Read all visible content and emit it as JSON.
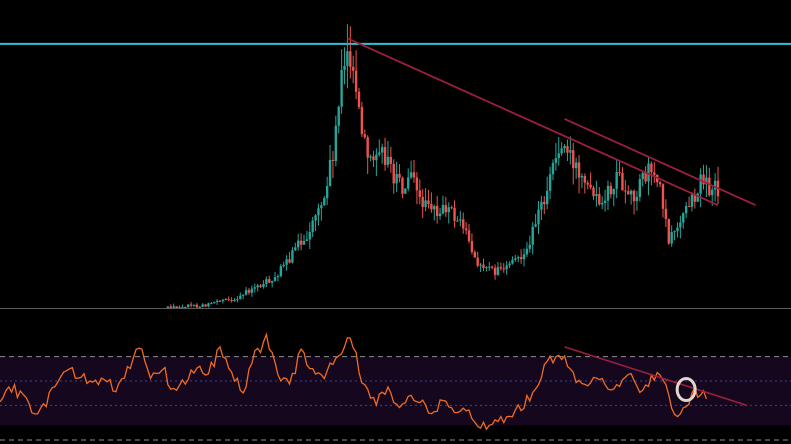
{
  "colors": {
    "background": "#000000",
    "bullish_candle": "#26a69a",
    "bearish_candle": "#ef5350",
    "horizontal_level": "#29c5d6",
    "trendline": "#9c1f3f",
    "oscillator_line": "#f26b21",
    "oscillator_band_fill": "#14071e",
    "band_bound_lines": "#8f8f8f",
    "midline": "#3d3fa8",
    "highlight_circle": "#e0d6cc",
    "pane_separator": "#5c5c5c"
  },
  "chart_data": [
    {
      "type": "candlestick",
      "pane": "price",
      "title": "",
      "xlabel": "",
      "ylabel": "",
      "x_index_range": [
        0,
        248
      ],
      "ylim": [
        0,
        100
      ],
      "close_path": [
        [
          0,
          0
        ],
        [
          60,
          0.3
        ],
        [
          70,
          1
        ],
        [
          80,
          3
        ],
        [
          90,
          8
        ],
        [
          96,
          12
        ],
        [
          100,
          18
        ],
        [
          104,
          24
        ],
        [
          108,
          30
        ],
        [
          112,
          40
        ],
        [
          115,
          55
        ],
        [
          118,
          80
        ],
        [
          120,
          95
        ],
        [
          122,
          88
        ],
        [
          124,
          70
        ],
        [
          127,
          58
        ],
        [
          130,
          52
        ],
        [
          133,
          55
        ],
        [
          136,
          48
        ],
        [
          139,
          42
        ],
        [
          142,
          46
        ],
        [
          145,
          40
        ],
        [
          148,
          35
        ],
        [
          151,
          34
        ],
        [
          154,
          36
        ],
        [
          157,
          33
        ],
        [
          160,
          30
        ],
        [
          163,
          20
        ],
        [
          166,
          15
        ],
        [
          170,
          13
        ],
        [
          174,
          14
        ],
        [
          178,
          17
        ],
        [
          182,
          22
        ],
        [
          185,
          30
        ],
        [
          188,
          40
        ],
        [
          191,
          52
        ],
        [
          194,
          58
        ],
        [
          196,
          55
        ],
        [
          198,
          52
        ],
        [
          201,
          50
        ],
        [
          204,
          45
        ],
        [
          207,
          40
        ],
        [
          210,
          42
        ],
        [
          213,
          48
        ],
        [
          216,
          44
        ],
        [
          219,
          40
        ],
        [
          222,
          46
        ],
        [
          225,
          50
        ],
        [
          228,
          42
        ],
        [
          231,
          24
        ],
        [
          234,
          30
        ],
        [
          238,
          38
        ],
        [
          242,
          45
        ],
        [
          246,
          43
        ]
      ],
      "annotations": [
        {
          "kind": "horizontal_line",
          "y_value": 95
        },
        {
          "kind": "trend_line",
          "from": [
            120,
            97
          ],
          "to": [
            248,
            37
          ]
        },
        {
          "kind": "trend_line",
          "from": [
            195,
            68
          ],
          "to": [
            261,
            37
          ]
        }
      ]
    },
    {
      "type": "line",
      "pane": "oscillator",
      "title": "",
      "xlabel": "",
      "ylabel": "",
      "ylim": [
        0,
        100
      ],
      "bands": {
        "upper": 70,
        "lower": 30,
        "midline": 50
      },
      "series": [
        {
          "values_path": [
            [
              0,
              30
            ],
            [
              4,
              45
            ],
            [
              8,
              35
            ],
            [
              12,
              25
            ],
            [
              16,
              32
            ],
            [
              20,
              52
            ],
            [
              24,
              58
            ],
            [
              28,
              55
            ],
            [
              32,
              48
            ],
            [
              36,
              52
            ],
            [
              40,
              45
            ],
            [
              44,
              60
            ],
            [
              48,
              80
            ],
            [
              52,
              55
            ],
            [
              56,
              62
            ],
            [
              60,
              40
            ],
            [
              64,
              48
            ],
            [
              68,
              62
            ],
            [
              72,
              58
            ],
            [
              76,
              75
            ],
            [
              80,
              55
            ],
            [
              84,
              40
            ],
            [
              88,
              70
            ],
            [
              92,
              85
            ],
            [
              96,
              55
            ],
            [
              100,
              45
            ],
            [
              104,
              75
            ],
            [
              108,
              60
            ],
            [
              112,
              55
            ],
            [
              116,
              65
            ],
            [
              120,
              88
            ],
            [
              123,
              70
            ],
            [
              126,
              45
            ],
            [
              130,
              35
            ],
            [
              134,
              42
            ],
            [
              138,
              30
            ],
            [
              142,
              38
            ],
            [
              146,
              30
            ],
            [
              150,
              25
            ],
            [
              154,
              35
            ],
            [
              158,
              27
            ],
            [
              162,
              22
            ],
            [
              166,
              12
            ],
            [
              170,
              15
            ],
            [
              174,
              20
            ],
            [
              178,
              25
            ],
            [
              182,
              35
            ],
            [
              186,
              42
            ],
            [
              189,
              70
            ],
            [
              191,
              65
            ],
            [
              194,
              72
            ],
            [
              198,
              55
            ],
            [
              202,
              45
            ],
            [
              206,
              55
            ],
            [
              210,
              40
            ],
            [
              214,
              48
            ],
            [
              218,
              52
            ],
            [
              222,
              38
            ],
            [
              226,
              55
            ],
            [
              230,
              45
            ],
            [
              233,
              20
            ],
            [
              236,
              30
            ],
            [
              240,
              40
            ],
            [
              244,
              38
            ]
          ]
        }
      ],
      "annotations": [
        {
          "kind": "trend_line",
          "from": [
            195,
            78
          ],
          "to": [
            258,
            30
          ]
        },
        {
          "kind": "circle_marker",
          "x_index": 237,
          "y_value": 43
        }
      ]
    }
  ]
}
